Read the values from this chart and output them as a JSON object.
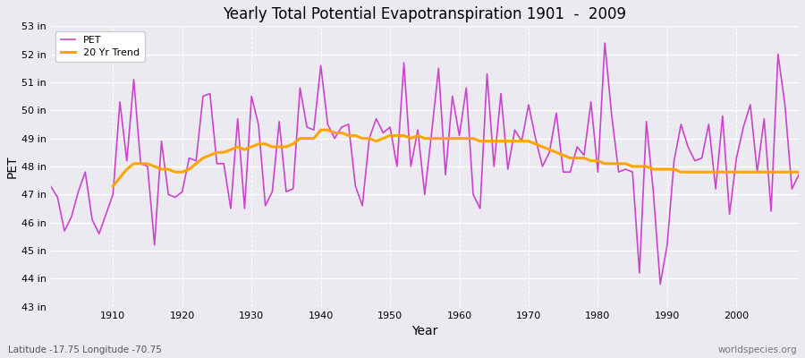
{
  "title": "Yearly Total Potential Evapotranspiration 1901  -  2009",
  "xlabel": "Year",
  "ylabel": "PET",
  "subtitle_left": "Latitude -17.75 Longitude -70.75",
  "subtitle_right": "worldspecies.org",
  "ylim": [
    43,
    53
  ],
  "ytick_labels": [
    "43 in",
    "44 in",
    "45 in",
    "46 in",
    "47 in",
    "48 in",
    "49 in",
    "50 in",
    "51 in",
    "52 in",
    "53 in"
  ],
  "ytick_values": [
    43,
    44,
    45,
    46,
    47,
    48,
    49,
    50,
    51,
    52,
    53
  ],
  "xticks": [
    1910,
    1920,
    1930,
    1940,
    1950,
    1960,
    1970,
    1980,
    1990,
    2000
  ],
  "pet_color": "#CC44CC",
  "trend_color": "#FFA500",
  "bg_color": "#EAEAF0",
  "years": [
    1901,
    1902,
    1903,
    1904,
    1905,
    1906,
    1907,
    1908,
    1909,
    1910,
    1911,
    1912,
    1913,
    1914,
    1915,
    1916,
    1917,
    1918,
    1919,
    1920,
    1921,
    1922,
    1923,
    1924,
    1925,
    1926,
    1927,
    1928,
    1929,
    1930,
    1931,
    1932,
    1933,
    1934,
    1935,
    1936,
    1937,
    1938,
    1939,
    1940,
    1941,
    1942,
    1943,
    1944,
    1945,
    1946,
    1947,
    1948,
    1949,
    1950,
    1951,
    1952,
    1953,
    1954,
    1955,
    1956,
    1957,
    1958,
    1959,
    1960,
    1961,
    1962,
    1963,
    1964,
    1965,
    1966,
    1967,
    1968,
    1969,
    1970,
    1971,
    1972,
    1973,
    1974,
    1975,
    1976,
    1977,
    1978,
    1979,
    1980,
    1981,
    1982,
    1983,
    1984,
    1985,
    1986,
    1987,
    1988,
    1989,
    1990,
    1991,
    1992,
    1993,
    1994,
    1995,
    1996,
    1997,
    1998,
    1999,
    2000,
    2001,
    2002,
    2003,
    2004,
    2005,
    2006,
    2007,
    2008,
    2009
  ],
  "pet_values": [
    47.3,
    46.9,
    45.7,
    46.2,
    47.1,
    47.8,
    46.1,
    45.6,
    46.3,
    47.0,
    50.3,
    48.2,
    51.1,
    48.1,
    48.0,
    45.2,
    48.9,
    47.0,
    46.9,
    47.1,
    48.3,
    48.2,
    50.5,
    50.6,
    48.1,
    48.1,
    46.5,
    49.7,
    46.5,
    50.5,
    49.5,
    46.6,
    47.1,
    49.6,
    47.1,
    47.2,
    50.8,
    49.4,
    49.3,
    51.6,
    49.5,
    49.0,
    49.4,
    49.5,
    47.3,
    46.6,
    49.0,
    49.7,
    49.2,
    49.4,
    48.0,
    51.7,
    48.0,
    49.3,
    47.0,
    49.2,
    51.5,
    47.7,
    50.5,
    49.1,
    50.8,
    47.0,
    46.5,
    51.3,
    48.0,
    50.6,
    47.9,
    49.3,
    48.9,
    50.2,
    49.0,
    48.0,
    48.5,
    49.9,
    47.8,
    47.8,
    48.7,
    48.4,
    50.3,
    47.8,
    52.4,
    49.8,
    47.8,
    47.9,
    47.8,
    44.2,
    49.6,
    47.1,
    43.8,
    45.2,
    48.2,
    49.5,
    48.7,
    48.2,
    48.3,
    49.5,
    47.2,
    49.8,
    46.3,
    48.3,
    49.4,
    50.2,
    47.8,
    49.7,
    46.4,
    52.0,
    50.2,
    47.2,
    47.7
  ],
  "trend_years": [
    1910,
    1911,
    1912,
    1913,
    1914,
    1915,
    1916,
    1917,
    1918,
    1919,
    1920,
    1921,
    1922,
    1923,
    1924,
    1925,
    1926,
    1927,
    1928,
    1929,
    1930,
    1931,
    1932,
    1933,
    1934,
    1935,
    1936,
    1937,
    1938,
    1939,
    1940,
    1941,
    1942,
    1943,
    1944,
    1945,
    1946,
    1947,
    1948,
    1949,
    1950,
    1951,
    1952,
    1953,
    1954,
    1955,
    1956,
    1957,
    1958,
    1959,
    1960,
    1961,
    1962,
    1963,
    1964,
    1965,
    1966,
    1967,
    1968,
    1969,
    1970,
    1971,
    1972,
    1973,
    1974,
    1975,
    1976,
    1977,
    1978,
    1979,
    1980,
    1981,
    1982,
    1983,
    1984,
    1985,
    1986,
    1987,
    1988,
    1989,
    1990,
    1991,
    1992,
    1993,
    1994,
    1995,
    1996,
    1997,
    1998,
    1999,
    2000,
    2001,
    2002,
    2003,
    2004,
    2005,
    2006,
    2007,
    2008,
    2009
  ],
  "trend_values": [
    47.3,
    47.6,
    47.9,
    48.1,
    48.1,
    48.1,
    48.0,
    47.9,
    47.9,
    47.8,
    47.8,
    47.9,
    48.1,
    48.3,
    48.4,
    48.5,
    48.5,
    48.6,
    48.7,
    48.6,
    48.7,
    48.8,
    48.8,
    48.7,
    48.7,
    48.7,
    48.8,
    49.0,
    49.0,
    49.0,
    49.3,
    49.3,
    49.2,
    49.2,
    49.1,
    49.1,
    49.0,
    49.0,
    48.9,
    49.0,
    49.1,
    49.1,
    49.1,
    49.0,
    49.1,
    49.0,
    49.0,
    49.0,
    49.0,
    49.0,
    49.0,
    49.0,
    49.0,
    48.9,
    48.9,
    48.9,
    48.9,
    48.9,
    48.9,
    48.9,
    48.9,
    48.8,
    48.7,
    48.6,
    48.5,
    48.4,
    48.3,
    48.3,
    48.3,
    48.2,
    48.2,
    48.1,
    48.1,
    48.1,
    48.1,
    48.0,
    48.0,
    48.0,
    47.9,
    47.9,
    47.9,
    47.9,
    47.8,
    47.8,
    47.8,
    47.8,
    47.8,
    47.8,
    47.8,
    47.8,
    47.8,
    47.8,
    47.8,
    47.8,
    47.8,
    47.8,
    47.8,
    47.8,
    47.8,
    47.8
  ]
}
